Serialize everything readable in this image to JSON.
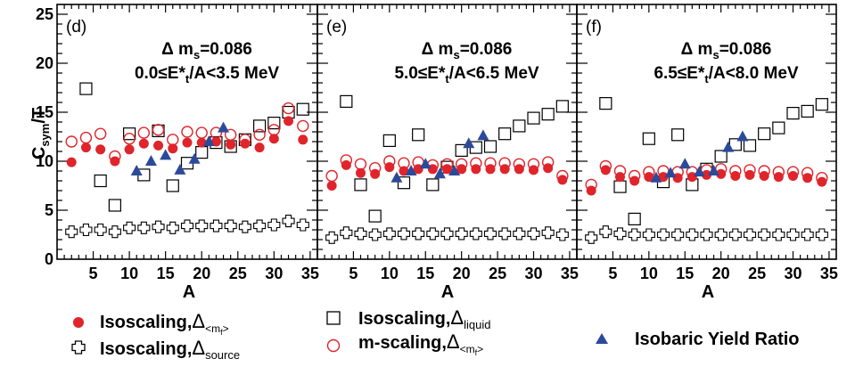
{
  "chart_data": {
    "type": "scatter",
    "ylabel_main": "C",
    "ylabel_sub": "sym",
    "ylabel_tail": "/T",
    "xlabel": "A",
    "xlim": [
      0,
      36
    ],
    "ylim": [
      0,
      26
    ],
    "x_ticks": [
      5,
      10,
      15,
      20,
      25,
      30,
      35
    ],
    "y_ticks": [
      0,
      5,
      10,
      15,
      20,
      25
    ],
    "colors": {
      "red": "#e0242b",
      "blue": "#2c4a9a",
      "black": "#000000"
    },
    "legend": [
      {
        "key": "iso_mf",
        "marker": "filled-circle",
        "color": "#e0242b",
        "text": "Isoscaling,",
        "sym": "Δ",
        "sub": "<m",
        "subsub": "f",
        "close": ">"
      },
      {
        "key": "iso_src",
        "marker": "open-cross",
        "color": "#000000",
        "text": "Isoscaling,",
        "sym": "Δ",
        "sub": "source"
      },
      {
        "key": "iso_liq",
        "marker": "open-square",
        "color": "#000000",
        "text": "Isoscaling,",
        "sym": "Δ",
        "sub": "liquid"
      },
      {
        "key": "mscale",
        "marker": "open-circle",
        "color": "#e0242b",
        "text": "m-scaling,",
        "sym": "Δ",
        "sub": "<m",
        "subsub": "f",
        "close": ">"
      },
      {
        "key": "isobaric",
        "marker": "filled-triangle",
        "color": "#2c4a9a",
        "text": "Isobaric Yield Ratio"
      }
    ],
    "panels": [
      {
        "letter": "(d)",
        "dm_pre": "Δ m",
        "dm_sub": "s",
        "dm_post": "=0.086",
        "e_pre": "0.0≤E*",
        "e_sub": "t",
        "e_post": "/A<3.5 MeV",
        "series": {
          "iso_mf": [
            [
              2,
              9.9
            ],
            [
              4,
              11.4
            ],
            [
              6,
              11.2
            ],
            [
              8,
              10.0
            ],
            [
              10,
              11.2
            ],
            [
              12,
              11.8
            ],
            [
              14,
              11.6
            ],
            [
              16,
              11.3
            ],
            [
              18,
              11.9
            ],
            [
              20,
              11.9
            ],
            [
              22,
              12.0
            ],
            [
              24,
              11.7
            ],
            [
              26,
              11.8
            ],
            [
              28,
              11.4
            ],
            [
              30,
              12.3
            ],
            [
              32,
              14.1
            ],
            [
              34,
              12.2
            ]
          ],
          "mscale": [
            [
              2,
              12.0
            ],
            [
              4,
              12.4
            ],
            [
              6,
              12.8
            ],
            [
              8,
              10.5
            ],
            [
              10,
              12.3
            ],
            [
              12,
              12.9
            ],
            [
              14,
              13.2
            ],
            [
              16,
              12.2
            ],
            [
              18,
              13.0
            ],
            [
              20,
              12.9
            ],
            [
              22,
              12.9
            ],
            [
              24,
              12.7
            ],
            [
              26,
              12.2
            ],
            [
              28,
              12.7
            ],
            [
              30,
              13.2
            ],
            [
              32,
              15.4
            ],
            [
              34,
              13.6
            ]
          ],
          "iso_liq": [
            [
              4,
              17.4
            ],
            [
              6,
              8.0
            ],
            [
              8,
              5.5
            ],
            [
              10,
              12.8
            ],
            [
              12,
              8.6
            ],
            [
              14,
              13.1
            ],
            [
              16,
              7.5
            ],
            [
              18,
              9.8
            ],
            [
              20,
              10.9
            ],
            [
              22,
              11.9
            ],
            [
              24,
              11.5
            ],
            [
              26,
              12.2
            ],
            [
              28,
              13.6
            ],
            [
              30,
              13.9
            ],
            [
              32,
              15.0
            ],
            [
              34,
              15.3
            ]
          ],
          "iso_src": [
            [
              2,
              2.8
            ],
            [
              4,
              3.0
            ],
            [
              6,
              3.0
            ],
            [
              8,
              2.8
            ],
            [
              10,
              3.2
            ],
            [
              12,
              3.2
            ],
            [
              14,
              3.3
            ],
            [
              16,
              3.2
            ],
            [
              18,
              3.4
            ],
            [
              20,
              3.4
            ],
            [
              22,
              3.4
            ],
            [
              24,
              3.4
            ],
            [
              26,
              3.3
            ],
            [
              28,
              3.4
            ],
            [
              30,
              3.5
            ],
            [
              32,
              3.9
            ],
            [
              34,
              3.5
            ]
          ],
          "isobaric": [
            [
              11,
              9.0
            ],
            [
              13,
              10.0
            ],
            [
              15,
              10.6
            ],
            [
              17,
              9.1
            ],
            [
              19,
              10.2
            ],
            [
              21,
              12.0
            ],
            [
              23,
              13.4
            ]
          ]
        }
      },
      {
        "letter": "(e)",
        "dm_pre": "Δ m",
        "dm_sub": "s",
        "dm_post": "=0.086",
        "e_pre": "5.0≤E*",
        "e_sub": "t",
        "e_post": "/A<6.5 MeV",
        "series": {
          "iso_mf": [
            [
              2,
              7.5
            ],
            [
              4,
              9.6
            ],
            [
              6,
              8.8
            ],
            [
              8,
              8.7
            ],
            [
              10,
              9.4
            ],
            [
              12,
              9.0
            ],
            [
              14,
              9.2
            ],
            [
              16,
              9.2
            ],
            [
              18,
              9.2
            ],
            [
              20,
              9.2
            ],
            [
              22,
              9.2
            ],
            [
              24,
              9.2
            ],
            [
              26,
              9.2
            ],
            [
              28,
              9.2
            ],
            [
              30,
              9.1
            ],
            [
              32,
              9.3
            ],
            [
              34,
              8.1
            ]
          ],
          "mscale": [
            [
              2,
              8.5
            ],
            [
              4,
              10.1
            ],
            [
              6,
              9.7
            ],
            [
              8,
              9.3
            ],
            [
              10,
              10.0
            ],
            [
              12,
              9.8
            ],
            [
              14,
              9.9
            ],
            [
              16,
              9.6
            ],
            [
              18,
              9.7
            ],
            [
              20,
              9.7
            ],
            [
              22,
              9.8
            ],
            [
              24,
              9.8
            ],
            [
              26,
              9.8
            ],
            [
              28,
              9.7
            ],
            [
              30,
              9.7
            ],
            [
              32,
              9.9
            ],
            [
              34,
              8.5
            ]
          ],
          "iso_liq": [
            [
              4,
              16.1
            ],
            [
              6,
              7.6
            ],
            [
              8,
              4.4
            ],
            [
              10,
              12.1
            ],
            [
              12,
              7.8
            ],
            [
              14,
              12.7
            ],
            [
              16,
              7.6
            ],
            [
              18,
              9.4
            ],
            [
              20,
              11.1
            ],
            [
              22,
              11.4
            ],
            [
              24,
              11.5
            ],
            [
              26,
              12.8
            ],
            [
              28,
              13.6
            ],
            [
              30,
              14.4
            ],
            [
              32,
              14.8
            ],
            [
              34,
              15.6
            ]
          ],
          "iso_src": [
            [
              2,
              2.2
            ],
            [
              4,
              2.7
            ],
            [
              6,
              2.6
            ],
            [
              8,
              2.5
            ],
            [
              10,
              2.6
            ],
            [
              12,
              2.6
            ],
            [
              14,
              2.6
            ],
            [
              16,
              2.6
            ],
            [
              18,
              2.6
            ],
            [
              20,
              2.6
            ],
            [
              22,
              2.6
            ],
            [
              24,
              2.6
            ],
            [
              26,
              2.6
            ],
            [
              28,
              2.6
            ],
            [
              30,
              2.6
            ],
            [
              32,
              2.7
            ],
            [
              34,
              2.5
            ]
          ],
          "isobaric": [
            [
              11,
              8.3
            ],
            [
              13,
              9.0
            ],
            [
              15,
              9.7
            ],
            [
              17,
              8.7
            ],
            [
              19,
              9.0
            ],
            [
              21,
              11.8
            ],
            [
              23,
              12.6
            ]
          ]
        }
      },
      {
        "letter": "(f)",
        "dm_pre": "Δ m",
        "dm_sub": "s",
        "dm_post": "=0.086",
        "e_pre": "6.5≤E*",
        "e_sub": "t",
        "e_post": "/A<8.0 MeV",
        "series": {
          "iso_mf": [
            [
              2,
              7.0
            ],
            [
              4,
              9.1
            ],
            [
              6,
              8.4
            ],
            [
              8,
              8.0
            ],
            [
              10,
              8.4
            ],
            [
              12,
              8.4
            ],
            [
              14,
              8.3
            ],
            [
              16,
              8.4
            ],
            [
              18,
              8.6
            ],
            [
              20,
              8.7
            ],
            [
              22,
              8.5
            ],
            [
              24,
              8.6
            ],
            [
              26,
              8.5
            ],
            [
              28,
              8.4
            ],
            [
              30,
              8.5
            ],
            [
              32,
              8.3
            ],
            [
              34,
              7.9
            ]
          ],
          "mscale": [
            [
              2,
              7.6
            ],
            [
              4,
              9.5
            ],
            [
              6,
              9.0
            ],
            [
              8,
              8.5
            ],
            [
              10,
              8.9
            ],
            [
              12,
              9.0
            ],
            [
              14,
              8.9
            ],
            [
              16,
              8.9
            ],
            [
              18,
              9.1
            ],
            [
              20,
              9.2
            ],
            [
              22,
              9.0
            ],
            [
              24,
              9.1
            ],
            [
              26,
              9.0
            ],
            [
              28,
              8.9
            ],
            [
              30,
              8.9
            ],
            [
              32,
              8.8
            ],
            [
              34,
              8.3
            ]
          ],
          "iso_liq": [
            [
              4,
              15.9
            ],
            [
              6,
              7.4
            ],
            [
              8,
              4.1
            ],
            [
              10,
              12.3
            ],
            [
              12,
              7.9
            ],
            [
              14,
              12.7
            ],
            [
              16,
              7.6
            ],
            [
              18,
              9.2
            ],
            [
              20,
              10.5
            ],
            [
              22,
              11.7
            ],
            [
              24,
              11.6
            ],
            [
              26,
              12.8
            ],
            [
              28,
              13.4
            ],
            [
              30,
              14.9
            ],
            [
              32,
              15.1
            ],
            [
              34,
              15.8
            ]
          ],
          "iso_src": [
            [
              2,
              2.2
            ],
            [
              4,
              2.8
            ],
            [
              6,
              2.6
            ],
            [
              8,
              2.5
            ],
            [
              10,
              2.5
            ],
            [
              12,
              2.5
            ],
            [
              14,
              2.5
            ],
            [
              16,
              2.5
            ],
            [
              18,
              2.5
            ],
            [
              20,
              2.5
            ],
            [
              22,
              2.5
            ],
            [
              24,
              2.5
            ],
            [
              26,
              2.5
            ],
            [
              28,
              2.5
            ],
            [
              30,
              2.5
            ],
            [
              32,
              2.5
            ],
            [
              34,
              2.5
            ]
          ],
          "isobaric": [
            [
              11,
              8.3
            ],
            [
              13,
              8.8
            ],
            [
              15,
              9.7
            ],
            [
              17,
              8.9
            ],
            [
              19,
              9.0
            ],
            [
              21,
              11.4
            ],
            [
              23,
              12.5
            ]
          ]
        }
      }
    ]
  }
}
